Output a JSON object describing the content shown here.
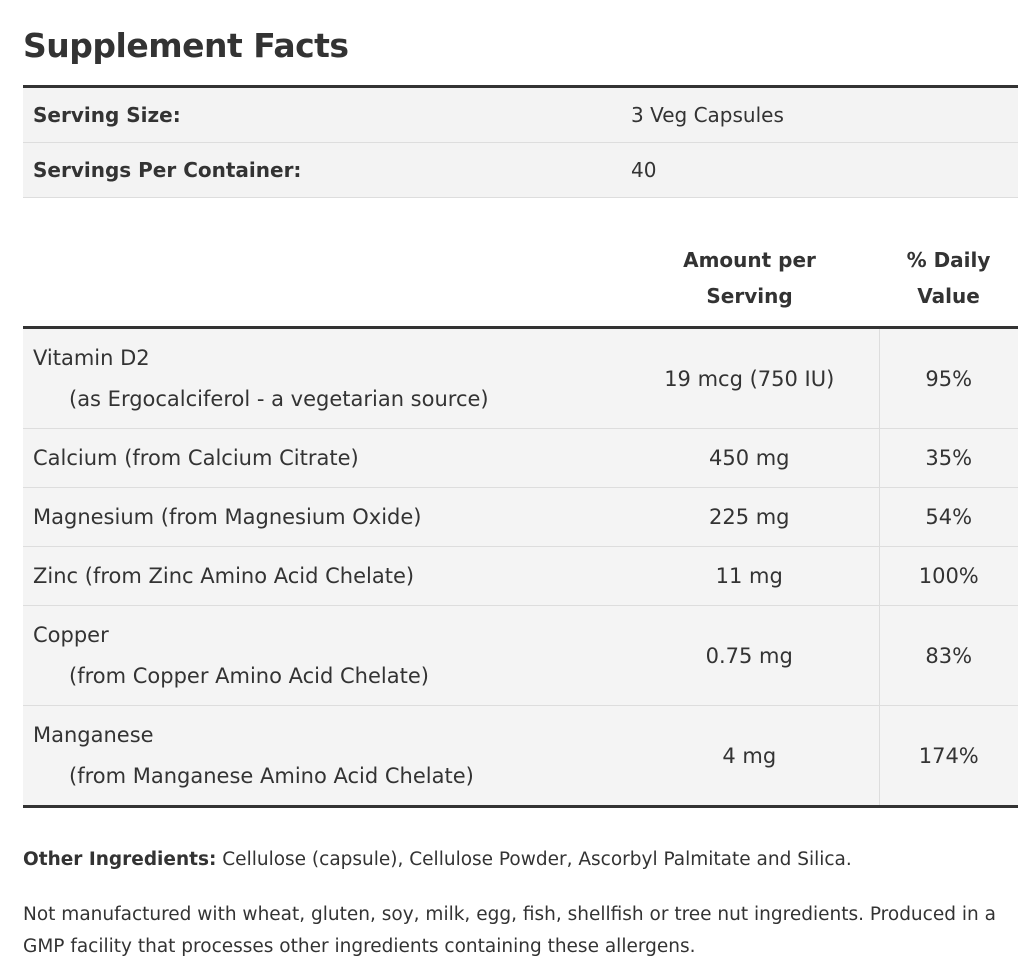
{
  "header": {
    "title": "Supplement Facts"
  },
  "serving": {
    "rows": [
      [
        "Serving Size:",
        "3 Veg Capsules"
      ],
      [
        "Servings Per Container:",
        "40"
      ]
    ]
  },
  "table": {
    "columns": {
      "amount": "Amount per Serving",
      "daily_value": "% Daily Value"
    },
    "rows": [
      {
        "name": "Vitamin D2",
        "source": "(as Ergocalciferol - a vegetarian source)",
        "amount": "19 mcg (750 IU)",
        "daily_value": "95%"
      },
      {
        "name": "Calcium (from Calcium Citrate)",
        "amount": "450 mg",
        "daily_value": "35%"
      },
      {
        "name": "Magnesium (from Magnesium Oxide)",
        "amount": "225 mg",
        "daily_value": "54%"
      },
      {
        "name": "Zinc (from Zinc Amino Acid Chelate)",
        "amount": "11 mg",
        "daily_value": "100%"
      },
      {
        "name": "Copper",
        "source": "(from Copper Amino Acid Chelate)",
        "amount": "0.75 mg",
        "daily_value": "83%"
      },
      {
        "name": "Manganese",
        "source": "(from Manganese Amino Acid Chelate)",
        "amount": "4 mg",
        "daily_value": "174%"
      }
    ]
  },
  "other_ingredients": {
    "label": "Other Ingredients:",
    "text": "Cellulose (capsule), Cellulose Powder, Ascorbyl Palmitate and Silica."
  },
  "note": "Not manufactured with wheat, gluten, soy, milk, egg, fish, shellfish or tree nut ingredients. Produced in a GMP facility that processes other ingredients containing these allergens."
}
